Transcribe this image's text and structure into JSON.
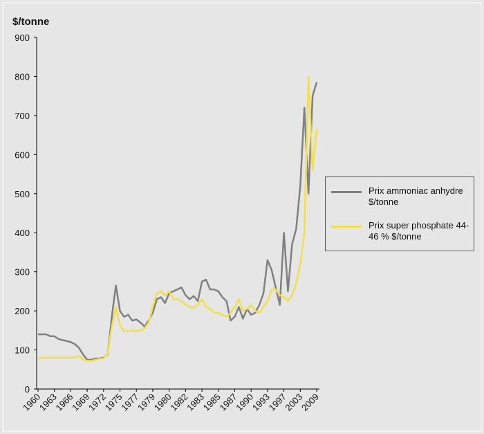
{
  "chart_data": {
    "type": "line",
    "y_label": "$/tonne",
    "categories": [
      "1960",
      null,
      null,
      null,
      "1963",
      null,
      null,
      null,
      "1966",
      null,
      null,
      null,
      "1969",
      null,
      null,
      null,
      "1972",
      null,
      null,
      null,
      "1975",
      null,
      null,
      null,
      "1977",
      null,
      null,
      null,
      "1979",
      null,
      null,
      null,
      "1980",
      null,
      null,
      null,
      "1982",
      null,
      null,
      null,
      "1983",
      null,
      null,
      null,
      "1985",
      null,
      null,
      null,
      "1987",
      null,
      null,
      null,
      "1990",
      null,
      null,
      null,
      "1993",
      null,
      null,
      null,
      "1997",
      null,
      null,
      null,
      "2003",
      null,
      null,
      null,
      "2009"
    ],
    "series": [
      {
        "name": "Prix ammoniac anhydre $/tonne",
        "color": "#808080",
        "values": [
          140,
          140,
          140,
          135,
          135,
          128,
          125,
          123,
          120,
          115,
          105,
          88,
          75,
          75,
          78,
          78,
          80,
          88,
          185,
          265,
          200,
          185,
          190,
          175,
          178,
          170,
          160,
          175,
          195,
          230,
          235,
          220,
          245,
          250,
          255,
          260,
          240,
          230,
          238,
          225,
          275,
          280,
          255,
          255,
          250,
          235,
          225,
          175,
          185,
          210,
          180,
          205,
          190,
          195,
          215,
          245,
          330,
          305,
          260,
          215,
          400,
          250,
          370,
          410,
          520,
          720,
          500,
          750,
          785
        ]
      },
      {
        "name": "Prix super phosphate 44-46 % $/tonne",
        "color": "#f2e04a",
        "values": [
          78,
          80,
          80,
          80,
          80,
          80,
          80,
          80,
          80,
          80,
          85,
          75,
          72,
          72,
          75,
          77,
          78,
          90,
          160,
          210,
          165,
          148,
          148,
          150,
          148,
          150,
          155,
          170,
          210,
          245,
          250,
          240,
          250,
          230,
          230,
          225,
          215,
          210,
          208,
          215,
          230,
          210,
          205,
          195,
          195,
          190,
          185,
          195,
          210,
          230,
          200,
          205,
          215,
          200,
          195,
          210,
          225,
          255,
          255,
          240,
          235,
          225,
          240,
          270,
          320,
          400,
          800,
          560,
          665
        ]
      }
    ],
    "ylim": [
      0,
      900
    ],
    "yticks": [
      0,
      100,
      200,
      300,
      400,
      500,
      600,
      700,
      800,
      900
    ],
    "grid": false,
    "legend": "right"
  }
}
